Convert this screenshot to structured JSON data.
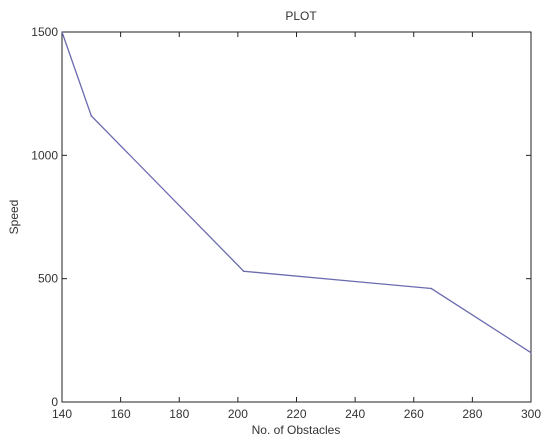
{
  "chart_data": {
    "type": "line",
    "title": "PLOT",
    "xlabel": "No. of Obstacles",
    "ylabel": "Speed",
    "xlim": [
      140,
      300
    ],
    "ylim": [
      0,
      1500
    ],
    "xticks": [
      140,
      160,
      180,
      200,
      220,
      240,
      260,
      280,
      300
    ],
    "yticks": [
      0,
      500,
      1000,
      1500
    ],
    "grid": false,
    "series": [
      {
        "x": [
          140,
          150,
          202,
          266,
          300
        ],
        "y": [
          1500,
          1160,
          530,
          460,
          200
        ],
        "color": "#6b6bb0"
      }
    ]
  }
}
